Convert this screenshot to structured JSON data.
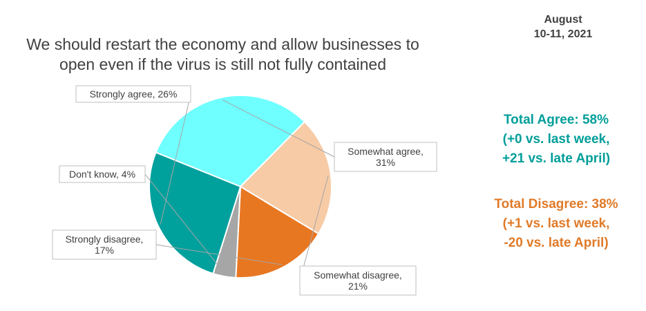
{
  "header": {
    "title_line1": "We should restart the economy and allow businesses to",
    "title_line2": "open even if the virus is still not fully contained",
    "date_line1": "August",
    "date_line2": "10-11, 2021"
  },
  "summary": {
    "agree_line1": "Total Agree: 58%",
    "agree_line2": "(+0 vs. last week,",
    "agree_line3": "+21 vs. late April)",
    "agree_color": "#009E9A",
    "disagree_line1": "Total Disagree: 38%",
    "disagree_line2": "(+1 vs. last week,",
    "disagree_line3": "-20 vs. late April)",
    "disagree_color": "#E07A28"
  },
  "chart_data": {
    "type": "pie",
    "slices": [
      {
        "label": "Somewhat agree",
        "value": 31,
        "color": "#6FFFFF",
        "text_lines": [
          "Somewhat agree,",
          "31%"
        ]
      },
      {
        "label": "Somewhat disagree",
        "value": 21,
        "color": "#F7CBA6",
        "text_lines": [
          "Somewhat disagree,",
          "21%"
        ]
      },
      {
        "label": "Strongly disagree",
        "value": 17,
        "color": "#E87722",
        "text_lines": [
          "Strongly disagree,",
          "17%"
        ]
      },
      {
        "label": "Don't know",
        "value": 4,
        "color": "#A6A6A6",
        "text_lines": [
          "Don't know, 4%"
        ]
      },
      {
        "label": "Strongly agree",
        "value": 26,
        "color": "#00A09D",
        "text_lines": [
          "Strongly agree, 26%"
        ]
      }
    ]
  }
}
